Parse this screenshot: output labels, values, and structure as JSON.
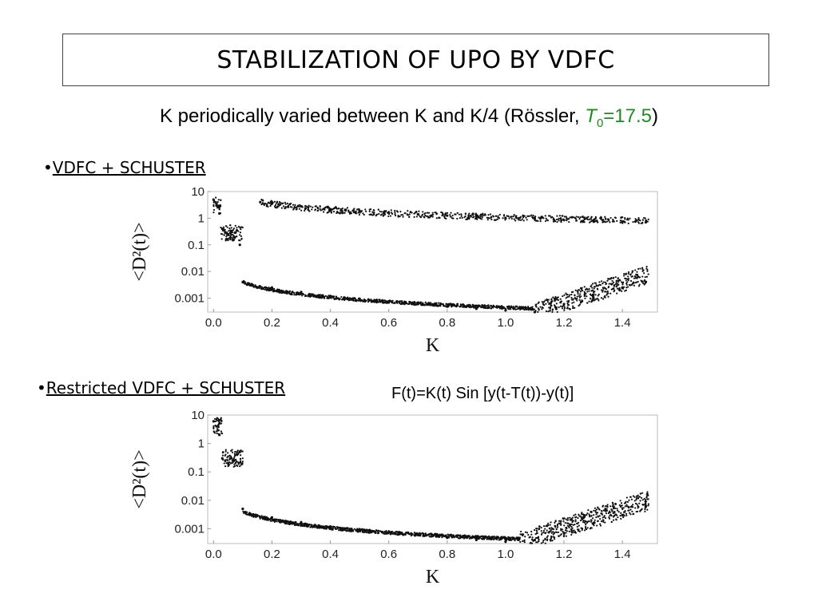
{
  "slide": {
    "title": "STABILIZATION OF UPO BY VDFC",
    "subtitle": {
      "prefix": "K periodically varied between K and K/4 (Rössler, ",
      "T_symbol": "T",
      "T_subscript": "0",
      "T_value": "=17.5",
      "suffix": ")",
      "highlight_color": "#1e8c1e"
    },
    "bullet_1": {
      "marker": "•",
      "label": "VDFC + SCHUSTER"
    },
    "bullet_2": {
      "marker": "•",
      "label": "Restricted VDFC + SCHUSTER"
    },
    "formula": "F(t)=K(t) Sin [y(t-T(t))-y(t)]"
  },
  "chart_data": [
    {
      "type": "scatter",
      "xlabel": "K",
      "ylabel": "<D²(t)>",
      "y_scale": "log",
      "xlim": [
        -0.02,
        1.52
      ],
      "ylim": [
        0.0003,
        10
      ],
      "x_ticks": [
        0.0,
        0.2,
        0.4,
        0.6,
        0.8,
        1.0,
        1.2,
        1.4
      ],
      "x_tick_labels": [
        "0.0",
        "0.2",
        "0.4",
        "0.6",
        "0.8",
        "1.0",
        "1.2",
        "1.4"
      ],
      "y_ticks": [
        10,
        1,
        0.1,
        0.01,
        0.001
      ],
      "y_tick_labels": [
        "10",
        "1",
        "0.1",
        "0.01",
        "0.001"
      ],
      "series": [
        {
          "marker_color": "#111111",
          "points": [
            [
              0.0,
              5
            ],
            [
              0.01,
              3
            ],
            [
              0.02,
              1.5
            ],
            [
              0.03,
              0.4
            ],
            [
              0.04,
              0.3
            ],
            [
              0.05,
              0.25
            ],
            [
              0.06,
              0.3
            ],
            [
              0.07,
              0.2
            ],
            [
              0.08,
              0.35
            ],
            [
              0.09,
              0.1
            ],
            [
              0.1,
              0.004
            ],
            [
              0.2,
              0.0025
            ],
            [
              0.3,
              0.0017
            ],
            [
              0.4,
              0.0012
            ],
            [
              0.5,
              0.00095
            ],
            [
              0.6,
              0.00075
            ],
            [
              0.7,
              0.0006
            ],
            [
              0.8,
              0.00048
            ],
            [
              0.9,
              0.0004
            ],
            [
              1.0,
              0.00035
            ],
            [
              1.1,
              0.0003
            ],
            [
              1.2,
              0.0006
            ],
            [
              1.3,
              0.0012
            ],
            [
              1.4,
              0.0025
            ],
            [
              1.48,
              0.004
            ],
            [
              0.16,
              4
            ],
            [
              0.2,
              3.5
            ],
            [
              0.3,
              2.8
            ],
            [
              0.4,
              2.2
            ],
            [
              0.5,
              1.9
            ],
            [
              0.6,
              1.6
            ],
            [
              0.7,
              1.4
            ],
            [
              0.8,
              1.25
            ],
            [
              0.9,
              1.1
            ],
            [
              1.0,
              1.0
            ],
            [
              1.1,
              0.95
            ],
            [
              1.2,
              0.85
            ],
            [
              1.3,
              0.8
            ],
            [
              1.4,
              0.75
            ],
            [
              1.48,
              0.7
            ]
          ]
        }
      ]
    },
    {
      "type": "scatter",
      "xlabel": "K",
      "ylabel": "<D²(t)>",
      "y_scale": "log",
      "xlim": [
        -0.02,
        1.52
      ],
      "ylim": [
        0.0003,
        10
      ],
      "x_ticks": [
        0.0,
        0.2,
        0.4,
        0.6,
        0.8,
        1.0,
        1.2,
        1.4
      ],
      "x_tick_labels": [
        "0.0",
        "0.2",
        "0.4",
        "0.6",
        "0.8",
        "1.0",
        "1.2",
        "1.4"
      ],
      "y_ticks": [
        10,
        1,
        0.1,
        0.01,
        0.001
      ],
      "y_tick_labels": [
        "10",
        "1",
        "0.1",
        "0.01",
        "0.001"
      ],
      "series": [
        {
          "marker_color": "#111111",
          "points": [
            [
              0.0,
              6
            ],
            [
              0.01,
              4
            ],
            [
              0.02,
              2
            ],
            [
              0.03,
              0.3
            ],
            [
              0.04,
              0.25
            ],
            [
              0.05,
              0.2
            ],
            [
              0.06,
              0.3
            ],
            [
              0.07,
              0.25
            ],
            [
              0.08,
              0.4
            ],
            [
              0.09,
              0.5
            ],
            [
              0.1,
              0.005
            ],
            [
              0.2,
              0.0025
            ],
            [
              0.3,
              0.0017
            ],
            [
              0.4,
              0.0012
            ],
            [
              0.5,
              0.00095
            ],
            [
              0.6,
              0.00075
            ],
            [
              0.7,
              0.0006
            ],
            [
              0.8,
              0.00048
            ],
            [
              0.9,
              0.0004
            ],
            [
              1.0,
              0.00035
            ],
            [
              1.1,
              0.0004
            ],
            [
              1.2,
              0.0007
            ],
            [
              1.3,
              0.0015
            ],
            [
              1.4,
              0.003
            ],
            [
              1.48,
              0.006
            ]
          ]
        }
      ]
    }
  ]
}
